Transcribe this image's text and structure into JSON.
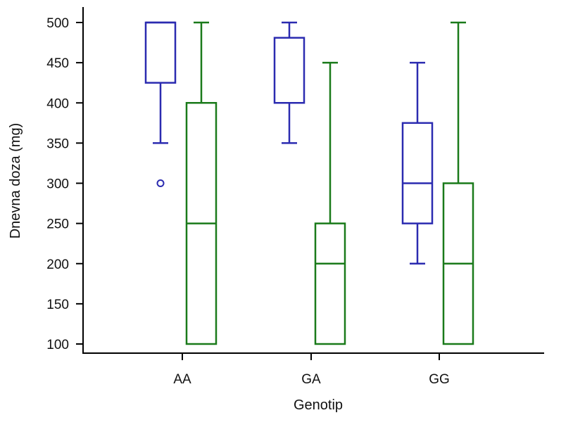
{
  "chart_data": {
    "type": "box",
    "title": "",
    "xlabel": "Genotip",
    "ylabel": "Dnevna doza (mg)",
    "ylim": [
      100,
      500
    ],
    "yticks": [
      100,
      150,
      200,
      250,
      300,
      350,
      400,
      450,
      500
    ],
    "categories": [
      "AA",
      "GA",
      "GG"
    ],
    "grid": false,
    "series": [
      {
        "color": "#2b2bb0",
        "boxes": [
          {
            "category": "AA",
            "whisker_low": 350,
            "q1": 425,
            "median": 500,
            "q3": 500,
            "whisker_high": 500,
            "outliers": [
              300
            ]
          },
          {
            "category": "GA",
            "whisker_low": 350,
            "q1": 400,
            "median": 400,
            "q3": 481,
            "whisker_high": 500,
            "outliers": []
          },
          {
            "category": "GG",
            "whisker_low": 200,
            "q1": 250,
            "median": 300,
            "q3": 375,
            "whisker_high": 450,
            "outliers": []
          }
        ]
      },
      {
        "color": "#1a7a1a",
        "boxes": [
          {
            "category": "AA",
            "whisker_low": 100,
            "q1": 100,
            "median": 250,
            "q3": 400,
            "whisker_high": 500,
            "outliers": []
          },
          {
            "category": "GA",
            "whisker_low": 100,
            "q1": 100,
            "median": 200,
            "q3": 250,
            "whisker_high": 450,
            "outliers": []
          },
          {
            "category": "GG",
            "whisker_low": 100,
            "q1": 100,
            "median": 200,
            "q3": 300,
            "whisker_high": 500,
            "outliers": []
          }
        ]
      }
    ]
  }
}
